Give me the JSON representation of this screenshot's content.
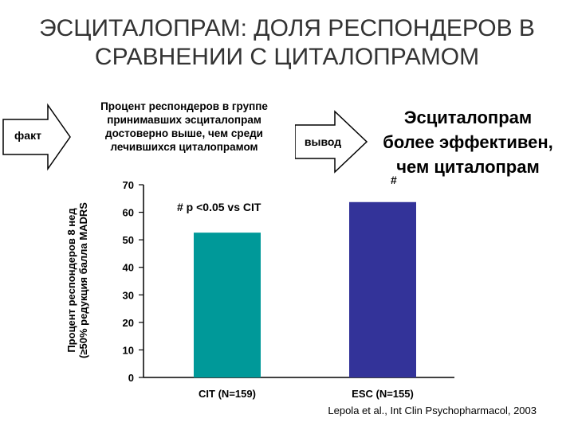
{
  "title_line1": "ЭСЦИТАЛОПРАМ: ДОЛЯ РЕСПОНДЕРОВ В",
  "title_line2": "СРАВНЕНИИ С ЦИТАЛОПРАМОМ",
  "fact_label": "факт",
  "finding": "Процент респондеров в группе принимавших эсциталопрам достоверно выше, чем среди лечившихся циталопрамом",
  "conclusion_label": "вывод",
  "conclusion": "Эсциталопрам более эффективен, чем циталопрам",
  "conclusion_hash": "#",
  "citation": "Lepola et al., Int Clin Psychopharmacol, 2003",
  "colors": {
    "cit": "#009999",
    "esc": "#333399",
    "arrow_fill": "#ffffff",
    "arrow_stroke": "#000000"
  },
  "chart_data": {
    "type": "bar",
    "categories": [
      "CIT (N=159)",
      "ESC (N=155)"
    ],
    "values": [
      52.6,
      63.7
    ],
    "ylabel_line1": "Процент респондеров 8 нед",
    "ylabel_line2": "(≥50% редукция балла MADRS",
    "ylim": [
      0,
      70
    ],
    "yticks": [
      0,
      10,
      20,
      30,
      40,
      50,
      60,
      70
    ],
    "annotation": "# p <0.05 vs CIT",
    "grid": false
  }
}
